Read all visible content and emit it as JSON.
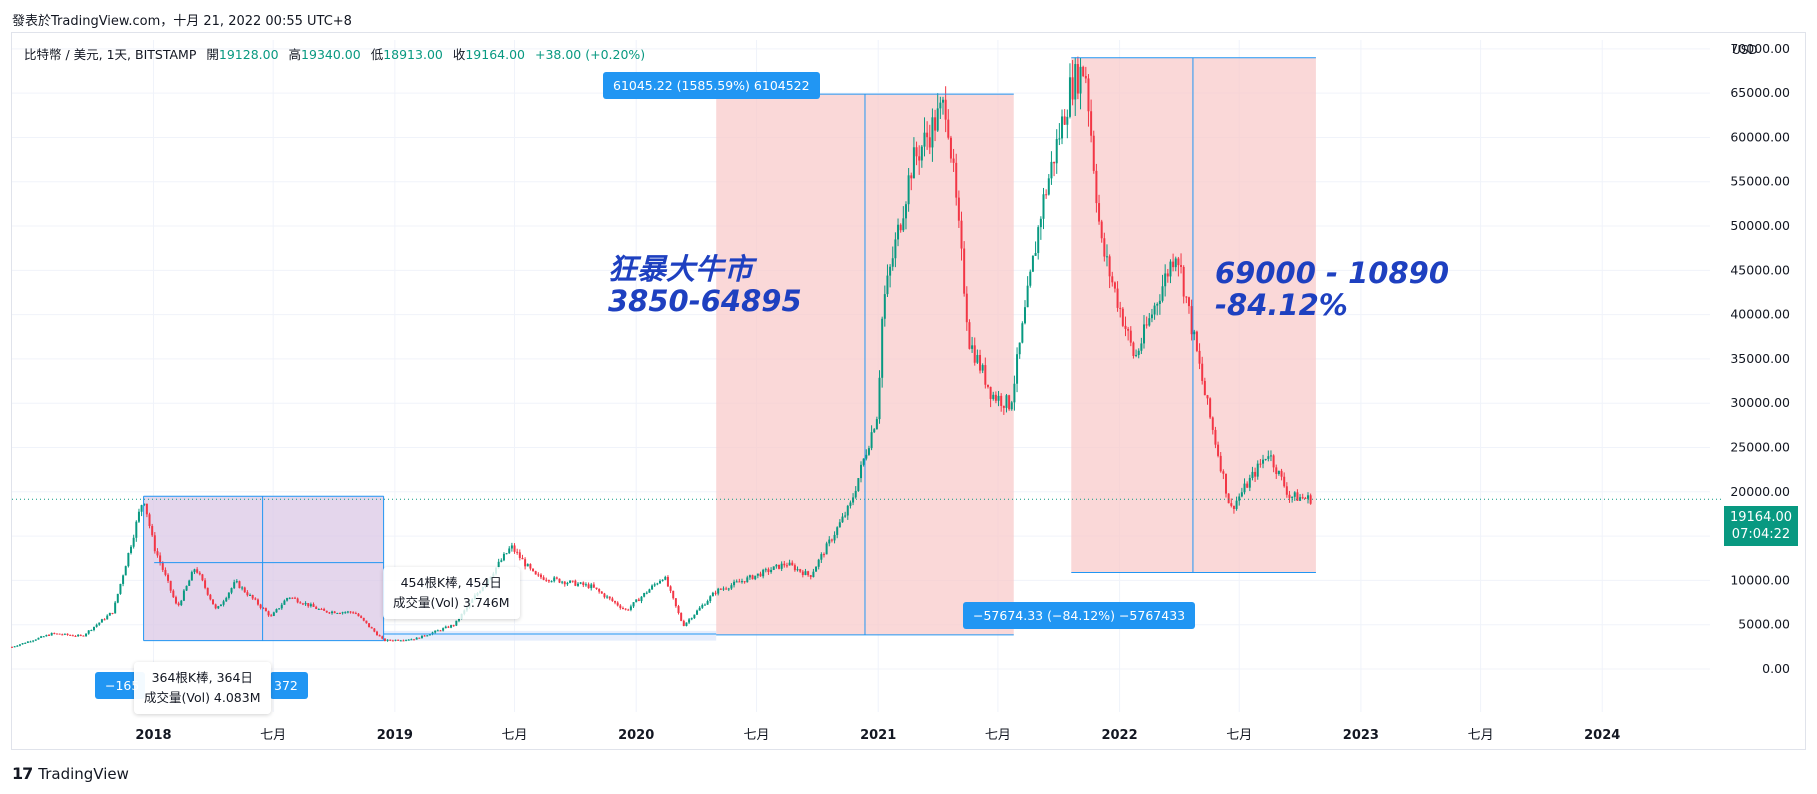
{
  "header": {
    "published": "發表於TradingView.com，十月 21, 2022 00:55 UTC+8"
  },
  "legend": {
    "symbol": "比特幣 / 美元, 1天, BITSTAMP",
    "open_label": "開",
    "open": "19128.00",
    "high_label": "高",
    "high": "19340.00",
    "low_label": "低",
    "low": "18913.00",
    "close_label": "收",
    "close": "19164.00",
    "change": "+38.00 (+0.20%)"
  },
  "price_axis": {
    "currency": "USD",
    "last_price": "19164.00",
    "countdown": "07:04:22"
  },
  "annotations": {
    "bull_title": "狂暴大牛市",
    "bull_range": "3850-64895",
    "bear_range": "69000 - 10890",
    "bear_pct": "-84.12%"
  },
  "measures": {
    "bull": "61045.22 (1585.59%) 6104522",
    "bear": "−57674.33 (−84.12%) −5767433",
    "bear2018_left": "−165",
    "bear2018_right": "372"
  },
  "tooltips": {
    "t2018_bars": "364根K棒, 364日",
    "t2018_vol": "成交量(Vol) 4.083M",
    "t2019_bars": "454根K棒, 454日",
    "t2019_vol": "成交量(Vol) 3.746M"
  },
  "footer": {
    "brand": "TradingView"
  },
  "colors": {
    "up": "#089981",
    "down": "#f23645",
    "measure": "#2196f3",
    "range_red": "#f8c7c7",
    "range_purple": "#d9c4e4",
    "annotation": "#1e40c0"
  },
  "chart_data": {
    "type": "candlestick",
    "title": "",
    "xlabel": "",
    "ylabel": "USD",
    "y_ticks": [
      "70000.00",
      "65000.00",
      "60000.00",
      "55000.00",
      "50000.00",
      "45000.00",
      "40000.00",
      "35000.00",
      "30000.00",
      "25000.00",
      "20000.00",
      "15000.00",
      "10000.00",
      "5000.00",
      "0.00"
    ],
    "x_ticks": [
      "2018",
      "七月",
      "2019",
      "七月",
      "2020",
      "七月",
      "2021",
      "七月",
      "2022",
      "七月",
      "2023",
      "七月",
      "2024"
    ],
    "ylim": [
      -3500,
      71000
    ],
    "xlim": [
      "2017-06-01",
      "2024-06-15"
    ],
    "last_price": 19164,
    "grid": true,
    "price_path": [
      [
        "2017-06-01",
        2500
      ],
      [
        "2017-08-01",
        4000
      ],
      [
        "2017-09-15",
        3700
      ],
      [
        "2017-11-01",
        6500
      ],
      [
        "2017-12-17",
        19500
      ],
      [
        "2018-01-01",
        14000
      ],
      [
        "2018-02-06",
        6900
      ],
      [
        "2018-03-05",
        11500
      ],
      [
        "2018-04-06",
        6600
      ],
      [
        "2018-05-05",
        9800
      ],
      [
        "2018-06-28",
        5900
      ],
      [
        "2018-07-24",
        8200
      ],
      [
        "2018-09-15",
        6500
      ],
      [
        "2018-11-01",
        6400
      ],
      [
        "2018-12-15",
        3200
      ],
      [
        "2019-02-01",
        3400
      ],
      [
        "2019-04-01",
        5000
      ],
      [
        "2019-06-26",
        13800
      ],
      [
        "2019-08-01",
        10500
      ],
      [
        "2019-10-25",
        9300
      ],
      [
        "2019-12-17",
        6600
      ],
      [
        "2020-02-12",
        10500
      ],
      [
        "2020-03-12",
        4900
      ],
      [
        "2020-05-01",
        8800
      ],
      [
        "2020-08-15",
        11900
      ],
      [
        "2020-09-20",
        10500
      ],
      [
        "2020-11-20",
        18500
      ],
      [
        "2020-12-31",
        29000
      ],
      [
        "2021-01-08",
        41000
      ],
      [
        "2021-02-21",
        57000
      ],
      [
        "2021-04-14",
        64000
      ],
      [
        "2021-05-19",
        37000
      ],
      [
        "2021-06-22",
        31000
      ],
      [
        "2021-07-20",
        29800
      ],
      [
        "2021-09-05",
        52000
      ],
      [
        "2021-10-20",
        66000
      ],
      [
        "2021-11-10",
        68000
      ],
      [
        "2021-12-04",
        48000
      ],
      [
        "2022-01-24",
        35000
      ],
      [
        "2022-03-28",
        47500
      ],
      [
        "2022-05-10",
        31000
      ],
      [
        "2022-06-18",
        18000
      ],
      [
        "2022-08-14",
        24500
      ],
      [
        "2022-09-15",
        19500
      ],
      [
        "2022-10-20",
        19164
      ]
    ]
  }
}
